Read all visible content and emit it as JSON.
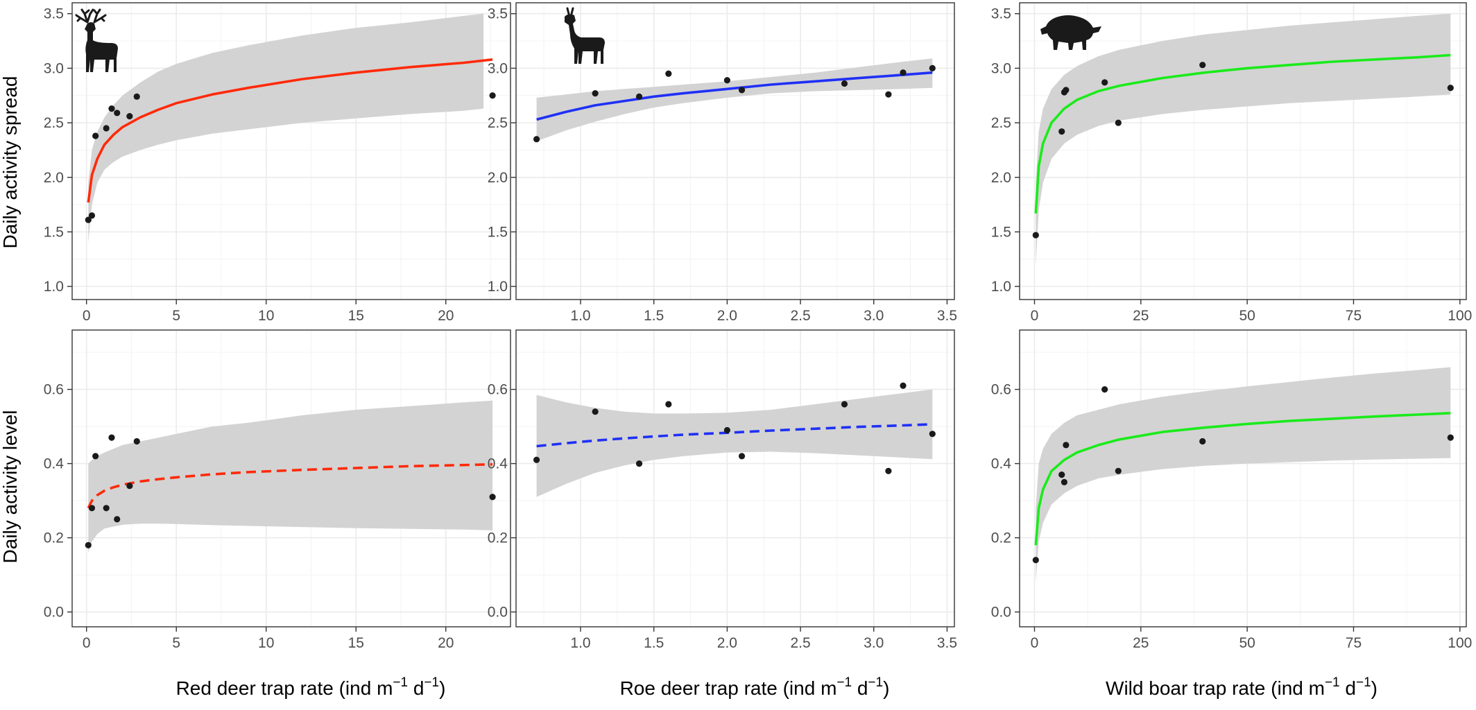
{
  "figure": {
    "row_labels": [
      "Daily activity spread",
      "Daily activity level"
    ],
    "column_xlabels": [
      {
        "text": "Red deer trap rate",
        "unit_base": "ind m",
        "unit_exp1": "−1",
        "unit_mid": " d",
        "unit_exp2": "−1"
      },
      {
        "text": "Roe deer trap rate",
        "unit_base": "ind m",
        "unit_exp1": "−1",
        "unit_mid": " d",
        "unit_exp2": "−1"
      },
      {
        "text": "Wild boar trap rate",
        "unit_base": "ind m",
        "unit_exp1": "−1",
        "unit_mid": " d",
        "unit_exp2": "−1"
      }
    ],
    "icons": [
      "red-deer-silhouette-icon",
      "roe-deer-silhouette-icon",
      "wild-boar-silhouette-icon"
    ]
  },
  "chart_data": [
    {
      "type": "scatter",
      "panel": "red-deer-spread",
      "ylabel": "Daily activity spread",
      "xlim": [
        -0.8,
        23.6
      ],
      "ylim": [
        0.88,
        3.6
      ],
      "xticks": [
        0,
        5,
        10,
        15,
        20
      ],
      "xtick_labels": [
        "0",
        "5",
        "10",
        "15",
        "20"
      ],
      "yticks": [
        1.0,
        1.5,
        2.0,
        2.5,
        3.0,
        3.5
      ],
      "ytick_labels": [
        "1.0",
        "1.5",
        "2.0",
        "2.5",
        "3.0",
        "3.5"
      ],
      "points": [
        [
          0.1,
          1.61
        ],
        [
          0.3,
          1.65
        ],
        [
          0.5,
          2.38
        ],
        [
          1.1,
          2.45
        ],
        [
          1.4,
          2.63
        ],
        [
          1.7,
          2.59
        ],
        [
          2.4,
          2.56
        ],
        [
          2.8,
          2.74
        ],
        [
          22.6,
          2.75
        ]
      ],
      "fit": {
        "x": [
          0.1,
          0.3,
          0.6,
          1,
          1.5,
          2,
          3,
          4,
          5,
          7,
          9,
          12,
          15,
          18,
          21,
          22.6
        ],
        "y": [
          1.77,
          2.02,
          2.17,
          2.3,
          2.39,
          2.46,
          2.55,
          2.62,
          2.68,
          2.76,
          2.82,
          2.9,
          2.96,
          3.01,
          3.05,
          3.08
        ],
        "line": "solid",
        "color": "#ff2a0a"
      },
      "band": {
        "x": [
          0.1,
          0.3,
          0.6,
          1,
          1.5,
          2,
          3,
          4,
          5,
          7,
          9,
          12,
          15,
          18,
          21,
          22.1
        ],
        "upper": [
          1.95,
          2.25,
          2.42,
          2.55,
          2.66,
          2.75,
          2.87,
          2.97,
          3.04,
          3.14,
          3.21,
          3.3,
          3.37,
          3.42,
          3.48,
          3.5
        ],
        "lower": [
          1.4,
          1.75,
          1.95,
          2.07,
          2.14,
          2.19,
          2.25,
          2.3,
          2.34,
          2.4,
          2.44,
          2.5,
          2.54,
          2.58,
          2.61,
          2.63
        ]
      }
    },
    {
      "type": "scatter",
      "panel": "roe-deer-spread",
      "xlim": [
        0.56,
        3.55
      ],
      "ylim": [
        0.88,
        3.6
      ],
      "xticks": [
        1.0,
        1.5,
        2.0,
        2.5,
        3.0,
        3.5
      ],
      "xtick_labels": [
        "1.0",
        "1.5",
        "2.0",
        "2.5",
        "3.0",
        "3.5"
      ],
      "yticks": [
        1.0,
        1.5,
        2.0,
        2.5,
        3.0,
        3.5
      ],
      "ytick_labels": [
        "1.0",
        "1.5",
        "2.0",
        "2.5",
        "3.0",
        "3.5"
      ],
      "points": [
        [
          0.7,
          2.35
        ],
        [
          1.1,
          2.77
        ],
        [
          1.4,
          2.74
        ],
        [
          1.6,
          2.95
        ],
        [
          2.0,
          2.89
        ],
        [
          2.1,
          2.8
        ],
        [
          2.8,
          2.86
        ],
        [
          3.1,
          2.76
        ],
        [
          3.2,
          2.96
        ],
        [
          3.4,
          3.0
        ]
      ],
      "fit": {
        "x": [
          0.7,
          0.9,
          1.1,
          1.3,
          1.5,
          1.7,
          2.0,
          2.3,
          2.6,
          2.9,
          3.2,
          3.4
        ],
        "y": [
          2.53,
          2.6,
          2.66,
          2.7,
          2.74,
          2.77,
          2.81,
          2.85,
          2.88,
          2.91,
          2.94,
          2.96
        ],
        "line": "solid",
        "color": "#1f30f5"
      },
      "band": {
        "x": [
          0.7,
          0.9,
          1.1,
          1.3,
          1.5,
          1.7,
          2.0,
          2.3,
          2.6,
          2.9,
          3.2,
          3.4
        ],
        "upper": [
          2.73,
          2.76,
          2.79,
          2.81,
          2.83,
          2.85,
          2.88,
          2.92,
          2.96,
          3.01,
          3.06,
          3.09
        ],
        "lower": [
          2.33,
          2.43,
          2.51,
          2.58,
          2.64,
          2.68,
          2.73,
          2.77,
          2.79,
          2.8,
          2.81,
          2.82
        ]
      }
    },
    {
      "type": "scatter",
      "panel": "wild-boar-spread",
      "xlim": [
        -3.5,
        101.5
      ],
      "ylim": [
        0.88,
        3.6
      ],
      "xticks": [
        0,
        25,
        50,
        75,
        100
      ],
      "xtick_labels": [
        "0",
        "25",
        "50",
        "75",
        "100"
      ],
      "yticks": [
        1.0,
        1.5,
        2.0,
        2.5,
        3.0,
        3.5
      ],
      "ytick_labels": [
        "1.0",
        "1.5",
        "2.0",
        "2.5",
        "3.0",
        "3.5"
      ],
      "points": [
        [
          0.3,
          1.47
        ],
        [
          6.4,
          2.42
        ],
        [
          7.0,
          2.78
        ],
        [
          7.4,
          2.8
        ],
        [
          16.5,
          2.87
        ],
        [
          19.7,
          2.5
        ],
        [
          39.5,
          3.03
        ],
        [
          97.8,
          2.82
        ]
      ],
      "fit": {
        "x": [
          0.3,
          1,
          2,
          4,
          7,
          10,
          15,
          20,
          30,
          40,
          50,
          60,
          70,
          80,
          90,
          97.8
        ],
        "y": [
          1.67,
          2.1,
          2.31,
          2.5,
          2.63,
          2.71,
          2.79,
          2.84,
          2.91,
          2.96,
          3.0,
          3.03,
          3.06,
          3.08,
          3.1,
          3.12
        ],
        "line": "solid",
        "color": "#1aeb1a"
      },
      "band": {
        "x": [
          0.3,
          1,
          2,
          4,
          7,
          10,
          15,
          20,
          30,
          40,
          50,
          60,
          70,
          80,
          90,
          97.8
        ],
        "upper": [
          1.95,
          2.42,
          2.63,
          2.81,
          2.94,
          3.02,
          3.11,
          3.17,
          3.25,
          3.31,
          3.35,
          3.39,
          3.42,
          3.45,
          3.48,
          3.5
        ],
        "lower": [
          1.2,
          1.7,
          1.95,
          2.17,
          2.31,
          2.39,
          2.47,
          2.52,
          2.58,
          2.62,
          2.65,
          2.68,
          2.7,
          2.72,
          2.74,
          2.76
        ]
      }
    },
    {
      "type": "scatter",
      "panel": "red-deer-level",
      "ylabel": "Daily activity level",
      "xlim": [
        -0.8,
        23.6
      ],
      "ylim": [
        -0.04,
        0.76
      ],
      "xticks": [
        0,
        5,
        10,
        15,
        20
      ],
      "xtick_labels": [
        "0",
        "5",
        "10",
        "15",
        "20"
      ],
      "yticks": [
        0.0,
        0.2,
        0.4,
        0.6
      ],
      "ytick_labels": [
        "0.0",
        "0.2",
        "0.4",
        "0.6"
      ],
      "points": [
        [
          0.1,
          0.18
        ],
        [
          0.3,
          0.28
        ],
        [
          0.5,
          0.42
        ],
        [
          1.1,
          0.28
        ],
        [
          1.4,
          0.47
        ],
        [
          1.7,
          0.25
        ],
        [
          2.4,
          0.34
        ],
        [
          2.8,
          0.46
        ],
        [
          22.6,
          0.31
        ]
      ],
      "fit": {
        "x": [
          0.1,
          0.3,
          0.6,
          1,
          1.5,
          2,
          3,
          4,
          5,
          7,
          9,
          12,
          15,
          18,
          21,
          22.6
        ],
        "y": [
          0.28,
          0.3,
          0.315,
          0.327,
          0.336,
          0.343,
          0.352,
          0.358,
          0.363,
          0.371,
          0.377,
          0.383,
          0.388,
          0.393,
          0.396,
          0.398
        ],
        "line": "dashed",
        "color": "#ff2a0a"
      },
      "band": {
        "x": [
          0.1,
          0.3,
          0.6,
          1,
          1.5,
          2,
          3,
          4,
          5,
          7,
          9,
          12,
          15,
          18,
          21,
          22.6
        ],
        "upper": [
          0.4,
          0.41,
          0.42,
          0.43,
          0.44,
          0.45,
          0.46,
          0.47,
          0.48,
          0.5,
          0.51,
          0.53,
          0.545,
          0.555,
          0.565,
          0.57
        ],
        "lower": [
          0.16,
          0.19,
          0.21,
          0.225,
          0.23,
          0.235,
          0.238,
          0.238,
          0.237,
          0.234,
          0.232,
          0.229,
          0.226,
          0.224,
          0.222,
          0.22
        ]
      }
    },
    {
      "type": "scatter",
      "panel": "roe-deer-level",
      "xlim": [
        0.56,
        3.55
      ],
      "ylim": [
        -0.04,
        0.76
      ],
      "xticks": [
        1.0,
        1.5,
        2.0,
        2.5,
        3.0,
        3.5
      ],
      "xtick_labels": [
        "1.0",
        "1.5",
        "2.0",
        "2.5",
        "3.0",
        "3.5"
      ],
      "yticks": [
        0.0,
        0.2,
        0.4,
        0.6
      ],
      "ytick_labels": [
        "0.0",
        "0.2",
        "0.4",
        "0.6"
      ],
      "points": [
        [
          0.7,
          0.41
        ],
        [
          1.1,
          0.54
        ],
        [
          1.4,
          0.4
        ],
        [
          1.6,
          0.56
        ],
        [
          2.0,
          0.49
        ],
        [
          2.1,
          0.42
        ],
        [
          2.8,
          0.56
        ],
        [
          3.1,
          0.38
        ],
        [
          3.2,
          0.61
        ],
        [
          3.4,
          0.48
        ]
      ],
      "fit": {
        "x": [
          0.7,
          0.9,
          1.1,
          1.3,
          1.5,
          1.7,
          2.0,
          2.3,
          2.6,
          2.9,
          3.2,
          3.4
        ],
        "y": [
          0.447,
          0.455,
          0.462,
          0.468,
          0.473,
          0.478,
          0.483,
          0.489,
          0.494,
          0.499,
          0.503,
          0.506
        ],
        "line": "dashed",
        "color": "#1f30f5"
      },
      "band": {
        "x": [
          0.7,
          0.9,
          1.1,
          1.3,
          1.5,
          1.7,
          2.0,
          2.3,
          2.6,
          2.9,
          3.2,
          3.4
        ],
        "upper": [
          0.585,
          0.565,
          0.55,
          0.54,
          0.535,
          0.535,
          0.537,
          0.545,
          0.56,
          0.575,
          0.59,
          0.6
        ],
        "lower": [
          0.31,
          0.345,
          0.375,
          0.395,
          0.41,
          0.42,
          0.43,
          0.432,
          0.428,
          0.422,
          0.416,
          0.412
        ]
      }
    },
    {
      "type": "scatter",
      "panel": "wild-boar-level",
      "xlim": [
        -3.5,
        101.5
      ],
      "ylim": [
        -0.04,
        0.76
      ],
      "xticks": [
        0,
        25,
        50,
        75,
        100
      ],
      "xtick_labels": [
        "0",
        "25",
        "50",
        "75",
        "100"
      ],
      "yticks": [
        0.0,
        0.2,
        0.4,
        0.6
      ],
      "ytick_labels": [
        "0.0",
        "0.2",
        "0.4",
        "0.6"
      ],
      "points": [
        [
          0.3,
          0.14
        ],
        [
          6.4,
          0.37
        ],
        [
          7.0,
          0.35
        ],
        [
          7.4,
          0.45
        ],
        [
          16.5,
          0.6
        ],
        [
          19.7,
          0.38
        ],
        [
          39.5,
          0.46
        ],
        [
          97.8,
          0.47
        ]
      ],
      "fit": {
        "x": [
          0.3,
          1,
          2,
          4,
          7,
          10,
          15,
          20,
          30,
          40,
          50,
          60,
          70,
          80,
          90,
          97.8
        ],
        "y": [
          0.18,
          0.28,
          0.33,
          0.38,
          0.41,
          0.43,
          0.45,
          0.465,
          0.485,
          0.497,
          0.507,
          0.515,
          0.521,
          0.527,
          0.532,
          0.536
        ],
        "line": "solid",
        "color": "#1aeb1a"
      },
      "band": {
        "x": [
          0.3,
          1,
          2,
          4,
          7,
          10,
          15,
          20,
          30,
          40,
          50,
          60,
          70,
          80,
          90,
          97.8
        ],
        "upper": [
          0.28,
          0.4,
          0.44,
          0.48,
          0.51,
          0.53,
          0.545,
          0.56,
          0.58,
          0.595,
          0.608,
          0.62,
          0.632,
          0.643,
          0.652,
          0.66
        ],
        "lower": [
          0.08,
          0.19,
          0.24,
          0.29,
          0.32,
          0.34,
          0.36,
          0.37,
          0.385,
          0.394,
          0.4,
          0.404,
          0.408,
          0.411,
          0.413,
          0.415
        ]
      }
    }
  ]
}
